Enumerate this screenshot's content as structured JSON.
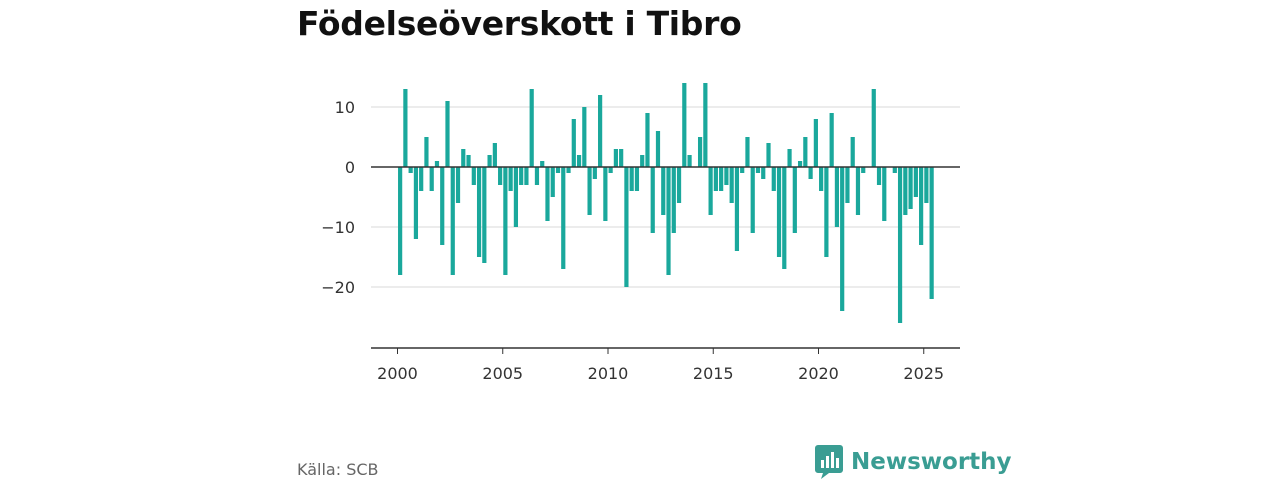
{
  "title": "Födelseöverskott i Tibro",
  "source": "Källa: SCB",
  "brand": {
    "name": "Newsworthy",
    "icon": "bar-chart-logo-icon",
    "color": "#3a9d93"
  },
  "chart_data": {
    "type": "bar",
    "title": "Födelseöverskott i Tibro",
    "bar_color": "#1aa89c",
    "grid": true,
    "ylim": [
      -30,
      15
    ],
    "xlim": [
      2000,
      2026
    ],
    "y_ticks": [
      {
        "value": 10,
        "label": "10"
      },
      {
        "value": 0,
        "label": "0"
      },
      {
        "value": -10,
        "label": "−10"
      },
      {
        "value": -20,
        "label": "−20"
      }
    ],
    "x_ticks": [
      2000,
      2005,
      2010,
      2015,
      2020,
      2025
    ],
    "series": [
      {
        "x": [
          "2000Q1",
          "2000Q2",
          "2000Q3",
          "2000Q4",
          "2001Q1",
          "2001Q2",
          "2001Q3",
          "2001Q4",
          "2002Q1",
          "2002Q2",
          "2002Q3",
          "2002Q4",
          "2003Q1",
          "2003Q2",
          "2003Q3",
          "2003Q4",
          "2004Q1",
          "2004Q2",
          "2004Q3",
          "2004Q4",
          "2005Q1",
          "2005Q2",
          "2005Q3",
          "2005Q4",
          "2006Q1",
          "2006Q2",
          "2006Q3",
          "2006Q4",
          "2007Q1",
          "2007Q2",
          "2007Q3",
          "2007Q4",
          "2008Q1",
          "2008Q2",
          "2008Q3",
          "2008Q4",
          "2009Q1",
          "2009Q2",
          "2009Q3",
          "2009Q4",
          "2010Q1",
          "2010Q2",
          "2010Q3",
          "2010Q4",
          "2011Q1",
          "2011Q2",
          "2011Q3",
          "2011Q4",
          "2012Q1",
          "2012Q2",
          "2012Q3",
          "2012Q4",
          "2013Q1",
          "2013Q2",
          "2013Q3",
          "2013Q4",
          "2014Q1",
          "2014Q2",
          "2014Q3",
          "2014Q4",
          "2015Q1",
          "2015Q2",
          "2015Q3",
          "2015Q4",
          "2016Q1",
          "2016Q2",
          "2016Q3",
          "2016Q4",
          "2017Q1",
          "2017Q2",
          "2017Q3",
          "2017Q4",
          "2018Q1",
          "2018Q2",
          "2018Q3",
          "2018Q4",
          "2019Q1",
          "2019Q2",
          "2019Q3",
          "2019Q4",
          "2020Q1",
          "2020Q2",
          "2020Q3",
          "2020Q4",
          "2021Q1",
          "2021Q2",
          "2021Q3",
          "2021Q4",
          "2022Q1",
          "2022Q2",
          "2022Q3",
          "2022Q4",
          "2023Q1",
          "2023Q2",
          "2023Q3",
          "2023Q4",
          "2024Q1",
          "2024Q2",
          "2024Q3",
          "2024Q4",
          "2025Q1",
          "2025Q2"
        ],
        "values": [
          -18,
          13,
          -1,
          -12,
          -4,
          5,
          -4,
          1,
          -13,
          11,
          -18,
          -6,
          3,
          2,
          -3,
          -15,
          -16,
          2,
          4,
          -3,
          -18,
          -4,
          -10,
          -3,
          -3,
          13,
          -3,
          1,
          -9,
          -5,
          -1,
          -17,
          -1,
          8,
          2,
          10,
          -8,
          -2,
          12,
          -9,
          -1,
          3,
          3,
          -20,
          -4,
          -4,
          2,
          9,
          -11,
          6,
          -8,
          -18,
          -11,
          -6,
          14,
          2,
          0,
          5,
          14,
          -8,
          -4,
          -4,
          -3,
          -6,
          -14,
          -1,
          5,
          -11,
          -1,
          -2,
          4,
          -4,
          -15,
          -17,
          3,
          -11,
          1,
          5,
          -2,
          8,
          -4,
          -15,
          9,
          -10,
          -24,
          -6,
          5,
          -8,
          -1,
          0,
          13,
          -3,
          -9,
          0,
          -1,
          -26,
          -8,
          -7,
          -5,
          -13,
          -6,
          -22
        ]
      }
    ]
  }
}
